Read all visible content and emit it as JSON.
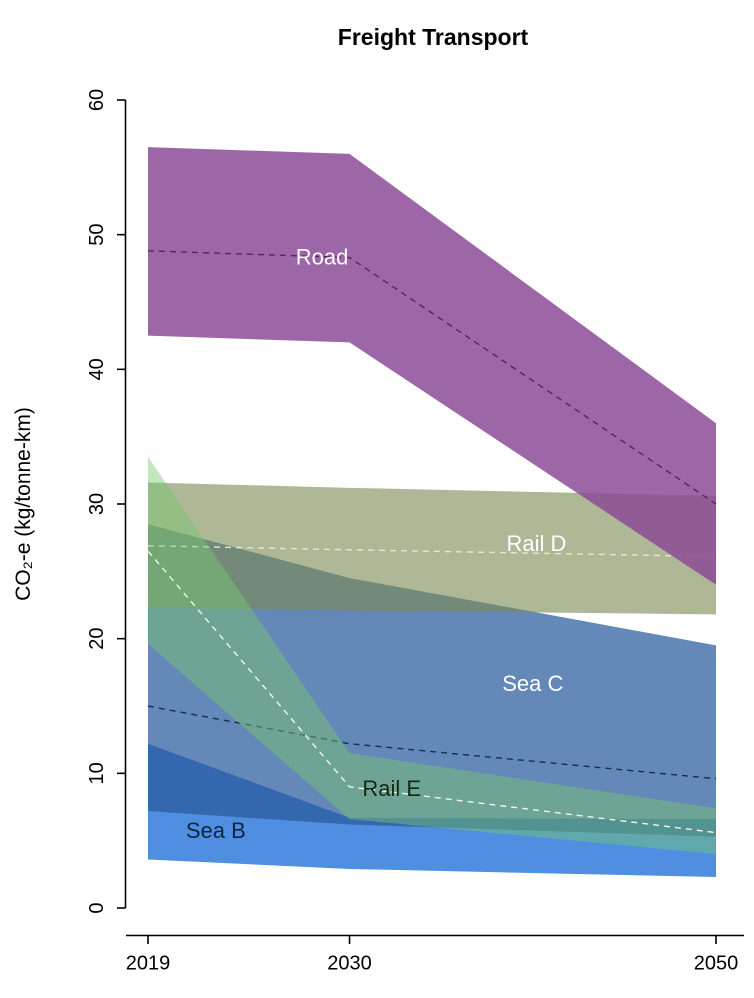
{
  "chart_data": {
    "type": "area",
    "title": "Freight Transport",
    "ylabel": "CO₂-e (kg/tonne-km)",
    "xlabel": "",
    "x": [
      2019,
      2030,
      2050
    ],
    "xlim": [
      2019,
      2050
    ],
    "ylim": [
      0,
      60
    ],
    "xticks": [
      2019,
      2030,
      2050
    ],
    "yticks": [
      0,
      10,
      20,
      30,
      40,
      50,
      60
    ],
    "grid": false,
    "legend": "labels-drawn-on-bands",
    "series": [
      {
        "name": "Sea B",
        "slug": "sea-b",
        "upper": [
          12.2,
          6.7,
          6.6
        ],
        "lower": [
          3.6,
          2.9,
          2.3
        ],
        "mean": null,
        "fill": "rgba(30,110,215,0.78)",
        "mean_color": null,
        "label": "Sea B",
        "label_color": "#10253d",
        "label_x": 2022.7,
        "label_y": 5.2
      },
      {
        "name": "Sea C",
        "slug": "sea-c",
        "upper": [
          28.5,
          24.5,
          19.5
        ],
        "lower": [
          7.2,
          6.2,
          5.3
        ],
        "mean": [
          15.0,
          12.2,
          9.6
        ],
        "fill": "rgba(40,90,155,0.72)",
        "mean_color": "#16304f",
        "label": "Sea C",
        "label_color": "#ffffff",
        "label_x": 2040.0,
        "label_y": 16.1
      },
      {
        "name": "Rail D",
        "slug": "rail-d",
        "upper": [
          31.6,
          31.2,
          30.6
        ],
        "lower": [
          22.3,
          22.1,
          21.8
        ],
        "mean": [
          26.9,
          26.6,
          26.1
        ],
        "fill": "rgba(124,138,86,0.62)",
        "mean_color": "#e3e9cf",
        "label": "Rail D",
        "label_color": "#ffffff",
        "label_x": 2040.2,
        "label_y": 26.5
      },
      {
        "name": "Road",
        "slug": "road",
        "upper": [
          56.5,
          56.0,
          36.0
        ],
        "lower": [
          42.5,
          42.0,
          24.0
        ],
        "mean": [
          48.8,
          48.3,
          30.0
        ],
        "fill": "rgba(140,75,150,0.85)",
        "mean_color": "#53275e",
        "label": "Road",
        "label_color": "#ffffff",
        "label_x": 2028.5,
        "label_y": 47.8
      },
      {
        "name": "Rail E",
        "slug": "rail-e",
        "upper": [
          33.5,
          11.5,
          7.4
        ],
        "lower": [
          19.6,
          6.6,
          4.0
        ],
        "mean": [
          26.5,
          9.0,
          5.6
        ],
        "fill": "rgba(120,200,110,0.45)",
        "mean_color": "#edf7e3",
        "label": "Rail E",
        "label_color": "#142a14",
        "label_x": 2032.3,
        "label_y": 8.3
      }
    ]
  }
}
